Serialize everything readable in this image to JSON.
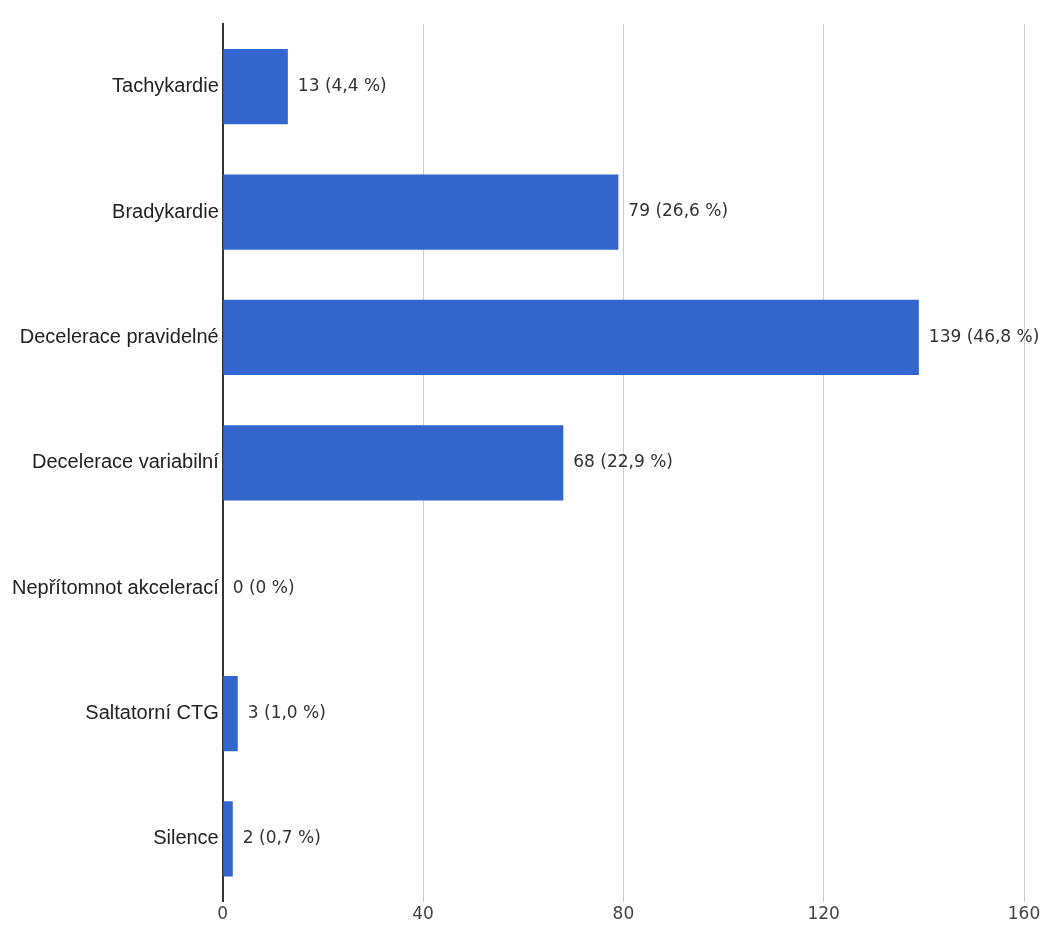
{
  "chart_data": {
    "type": "bar",
    "orientation": "horizontal",
    "categories": [
      "Tachykardie",
      "Bradykardie",
      "Decelerace pravidelné",
      "Decelerace variabilní",
      "Nepřítomnot akcelerací",
      "Saltatorní CTG",
      "Silence"
    ],
    "values": [
      13,
      79,
      139,
      68,
      0,
      3,
      2
    ],
    "value_labels": [
      "13 (4,4 %)",
      "79 (26,6 %)",
      "139 (46,8 %)",
      "68 (22,9 %)",
      "0 (0 %)",
      "3 (1,0 %)",
      "2 (0,7 %)"
    ],
    "color": "#3366cc",
    "xlim": [
      0,
      160
    ],
    "xticks": [
      0,
      40,
      80,
      120,
      160
    ],
    "grid": "x",
    "legend": false
  }
}
